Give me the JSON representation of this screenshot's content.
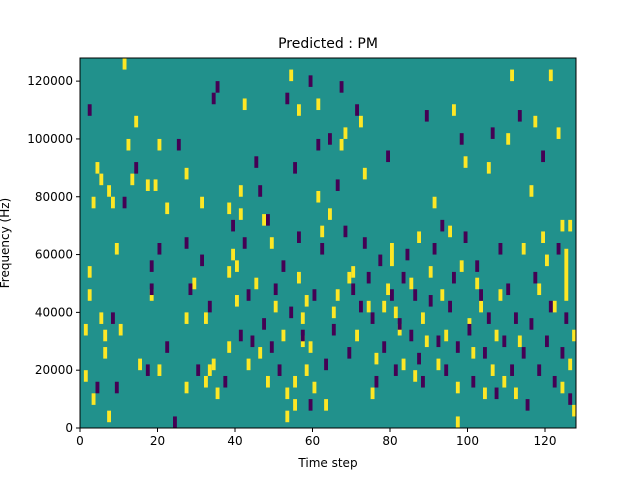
{
  "chart_data": {
    "type": "heatmap",
    "title": "Predicted : PM",
    "xlabel": "Time step",
    "ylabel": "Frequency (Hz)",
    "xlim": [
      0,
      128
    ],
    "ylim": [
      0,
      128000
    ],
    "x_ticks": [
      0,
      20,
      40,
      60,
      80,
      100,
      120
    ],
    "y_ticks": [
      0,
      20000,
      40000,
      60000,
      80000,
      100000,
      120000
    ],
    "x_tick_labels": [
      "0",
      "20",
      "40",
      "60",
      "80",
      "100",
      "120"
    ],
    "y_tick_labels": [
      "0",
      "20000",
      "40000",
      "60000",
      "80000",
      "100000",
      "120000"
    ],
    "grid": false,
    "colormap": "viridis",
    "colors": {
      "background": "#21918c",
      "high": "#fde725",
      "low": "#440154"
    },
    "high_cells": [
      [
        1,
        32000,
        36000
      ],
      [
        1,
        16000,
        20000
      ],
      [
        2,
        52000,
        56000
      ],
      [
        2,
        44000,
        48000
      ],
      [
        3,
        8000,
        12000
      ],
      [
        3,
        76000,
        80000
      ],
      [
        4,
        88000,
        92000
      ],
      [
        5,
        84000,
        88000
      ],
      [
        5,
        36000,
        40000
      ],
      [
        6,
        30000,
        34000
      ],
      [
        6,
        24000,
        28000
      ],
      [
        7,
        2000,
        6000
      ],
      [
        7,
        80000,
        84000
      ],
      [
        8,
        76000,
        80000
      ],
      [
        9,
        60000,
        64000
      ],
      [
        10,
        32000,
        36000
      ],
      [
        11,
        124000,
        128000
      ],
      [
        12,
        96000,
        100000
      ],
      [
        13,
        84000,
        88000
      ],
      [
        14,
        104000,
        108000
      ],
      [
        15,
        20000,
        24000
      ],
      [
        17,
        82000,
        86000
      ],
      [
        18,
        44000,
        48000
      ],
      [
        19,
        82000,
        86000
      ],
      [
        20,
        96000,
        100000
      ],
      [
        20,
        18000,
        22000
      ],
      [
        22,
        74000,
        78000
      ],
      [
        27,
        86000,
        90000
      ],
      [
        27,
        36000,
        40000
      ],
      [
        27,
        12000,
        16000
      ],
      [
        29,
        48000,
        52000
      ],
      [
        31,
        76000,
        80000
      ],
      [
        32,
        14000,
        18000
      ],
      [
        32,
        36000,
        40000
      ],
      [
        33,
        18000,
        22000
      ],
      [
        34,
        20000,
        24000
      ],
      [
        35,
        10000,
        14000
      ],
      [
        38,
        52000,
        56000
      ],
      [
        38,
        74000,
        78000
      ],
      [
        38,
        26000,
        30000
      ],
      [
        39,
        58000,
        62000
      ],
      [
        40,
        54000,
        58000
      ],
      [
        40,
        42000,
        46000
      ],
      [
        41,
        72000,
        76000
      ],
      [
        41,
        80000,
        84000
      ],
      [
        42,
        110000,
        114000
      ],
      [
        43,
        20000,
        24000
      ],
      [
        45,
        48000,
        52000
      ],
      [
        46,
        24000,
        28000
      ],
      [
        47,
        70000,
        74000
      ],
      [
        48,
        14000,
        18000
      ],
      [
        49,
        62000,
        66000
      ],
      [
        50,
        40000,
        44000
      ],
      [
        52,
        30000,
        34000
      ],
      [
        53,
        10000,
        14000
      ],
      [
        53,
        2000,
        6000
      ],
      [
        54,
        120000,
        124000
      ],
      [
        55,
        6000,
        10000
      ],
      [
        55,
        14000,
        18000
      ],
      [
        56,
        108000,
        112000
      ],
      [
        56,
        50000,
        54000
      ],
      [
        57,
        36000,
        40000
      ],
      [
        57,
        28000,
        32000
      ],
      [
        58,
        18000,
        22000
      ],
      [
        58,
        42000,
        46000
      ],
      [
        59,
        26000,
        30000
      ],
      [
        60,
        12000,
        16000
      ],
      [
        61,
        110000,
        114000
      ],
      [
        61,
        78000,
        82000
      ],
      [
        62,
        66000,
        70000
      ],
      [
        63,
        6000,
        10000
      ],
      [
        64,
        72000,
        76000
      ],
      [
        65,
        38000,
        42000
      ],
      [
        66,
        44000,
        48000
      ],
      [
        67,
        96000,
        100000
      ],
      [
        68,
        100000,
        104000
      ],
      [
        69,
        50000,
        54000
      ],
      [
        70,
        52000,
        56000
      ],
      [
        71,
        30000,
        34000
      ],
      [
        72,
        104000,
        108000
      ],
      [
        73,
        86000,
        90000
      ],
      [
        74,
        40000,
        44000
      ],
      [
        75,
        10000,
        14000
      ],
      [
        76,
        22000,
        26000
      ],
      [
        78,
        40000,
        44000
      ],
      [
        79,
        46000,
        50000
      ],
      [
        80,
        56000,
        64000
      ],
      [
        81,
        38000,
        42000
      ],
      [
        82,
        32000,
        36000
      ],
      [
        83,
        20000,
        24000
      ],
      [
        85,
        48000,
        52000
      ],
      [
        86,
        16000,
        20000
      ],
      [
        87,
        64000,
        68000
      ],
      [
        88,
        36000,
        40000
      ],
      [
        89,
        28000,
        32000
      ],
      [
        90,
        52000,
        56000
      ],
      [
        91,
        76000,
        80000
      ],
      [
        92,
        20000,
        24000
      ],
      [
        93,
        44000,
        48000
      ],
      [
        94,
        30000,
        34000
      ],
      [
        95,
        66000,
        70000
      ],
      [
        96,
        108000,
        112000
      ],
      [
        97,
        12000,
        16000
      ],
      [
        97,
        0,
        4000
      ],
      [
        98,
        54000,
        58000
      ],
      [
        99,
        90000,
        94000
      ],
      [
        100,
        34000,
        38000
      ],
      [
        101,
        24000,
        28000
      ],
      [
        102,
        48000,
        52000
      ],
      [
        103,
        40000,
        44000
      ],
      [
        104,
        10000,
        14000
      ],
      [
        105,
        88000,
        92000
      ],
      [
        106,
        18000,
        22000
      ],
      [
        107,
        30000,
        34000
      ],
      [
        108,
        44000,
        48000
      ],
      [
        109,
        14000,
        18000
      ],
      [
        110,
        98000,
        102000
      ],
      [
        111,
        120000,
        124000
      ],
      [
        112,
        10000,
        14000
      ],
      [
        113,
        28000,
        32000
      ],
      [
        114,
        60000,
        64000
      ],
      [
        116,
        80000,
        84000
      ],
      [
        117,
        104000,
        108000
      ],
      [
        118,
        46000,
        50000
      ],
      [
        119,
        64000,
        68000
      ],
      [
        120,
        56000,
        60000
      ],
      [
        121,
        120000,
        124000
      ],
      [
        122,
        40000,
        44000
      ],
      [
        123,
        100000,
        104000
      ],
      [
        124,
        68000,
        72000
      ],
      [
        124,
        12000,
        16000
      ],
      [
        125,
        44000,
        62000
      ],
      [
        126,
        20000,
        24000
      ],
      [
        126,
        68000,
        72000
      ],
      [
        127,
        4000,
        8000
      ],
      [
        127,
        30000,
        34000
      ]
    ],
    "low_cells": [
      [
        2,
        108000,
        112000
      ],
      [
        4,
        12000,
        16000
      ],
      [
        8,
        36000,
        40000
      ],
      [
        9,
        12000,
        16000
      ],
      [
        11,
        76000,
        80000
      ],
      [
        14,
        88000,
        92000
      ],
      [
        17,
        18000,
        22000
      ],
      [
        18,
        46000,
        50000
      ],
      [
        18,
        54000,
        58000
      ],
      [
        20,
        60000,
        64000
      ],
      [
        22,
        26000,
        30000
      ],
      [
        24,
        0,
        4000
      ],
      [
        25,
        96000,
        100000
      ],
      [
        27,
        62000,
        66000
      ],
      [
        28,
        46000,
        50000
      ],
      [
        30,
        18000,
        22000
      ],
      [
        31,
        56000,
        60000
      ],
      [
        33,
        40000,
        44000
      ],
      [
        34,
        112000,
        116000
      ],
      [
        35,
        116000,
        120000
      ],
      [
        37,
        14000,
        18000
      ],
      [
        39,
        68000,
        72000
      ],
      [
        41,
        30000,
        34000
      ],
      [
        42,
        62000,
        66000
      ],
      [
        43,
        44000,
        48000
      ],
      [
        44,
        28000,
        32000
      ],
      [
        45,
        90000,
        94000
      ],
      [
        46,
        80000,
        84000
      ],
      [
        47,
        34000,
        38000
      ],
      [
        48,
        70000,
        74000
      ],
      [
        49,
        26000,
        30000
      ],
      [
        50,
        46000,
        50000
      ],
      [
        51,
        18000,
        22000
      ],
      [
        52,
        54000,
        58000
      ],
      [
        53,
        112000,
        116000
      ],
      [
        54,
        38000,
        42000
      ],
      [
        55,
        88000,
        92000
      ],
      [
        56,
        64000,
        68000
      ],
      [
        57,
        30000,
        34000
      ],
      [
        59,
        118000,
        122000
      ],
      [
        59,
        6000,
        10000
      ],
      [
        60,
        44000,
        48000
      ],
      [
        61,
        96000,
        100000
      ],
      [
        62,
        60000,
        64000
      ],
      [
        63,
        20000,
        24000
      ],
      [
        64,
        98000,
        102000
      ],
      [
        65,
        32000,
        36000
      ],
      [
        66,
        82000,
        86000
      ],
      [
        67,
        116000,
        120000
      ],
      [
        68,
        66000,
        70000
      ],
      [
        69,
        24000,
        28000
      ],
      [
        70,
        46000,
        50000
      ],
      [
        71,
        108000,
        112000
      ],
      [
        72,
        40000,
        44000
      ],
      [
        73,
        62000,
        66000
      ],
      [
        74,
        50000,
        54000
      ],
      [
        75,
        36000,
        40000
      ],
      [
        76,
        14000,
        18000
      ],
      [
        77,
        56000,
        60000
      ],
      [
        78,
        26000,
        30000
      ],
      [
        79,
        92000,
        96000
      ],
      [
        80,
        44000,
        48000
      ],
      [
        81,
        18000,
        22000
      ],
      [
        82,
        34000,
        38000
      ],
      [
        83,
        50000,
        54000
      ],
      [
        84,
        58000,
        62000
      ],
      [
        85,
        30000,
        34000
      ],
      [
        86,
        44000,
        48000
      ],
      [
        87,
        22000,
        26000
      ],
      [
        88,
        14000,
        18000
      ],
      [
        89,
        106000,
        110000
      ],
      [
        90,
        42000,
        46000
      ],
      [
        91,
        60000,
        64000
      ],
      [
        92,
        28000,
        32000
      ],
      [
        93,
        68000,
        72000
      ],
      [
        94,
        18000,
        22000
      ],
      [
        95,
        40000,
        44000
      ],
      [
        96,
        50000,
        54000
      ],
      [
        97,
        26000,
        30000
      ],
      [
        98,
        98000,
        102000
      ],
      [
        99,
        64000,
        68000
      ],
      [
        100,
        32000,
        36000
      ],
      [
        101,
        14000,
        18000
      ],
      [
        102,
        54000,
        58000
      ],
      [
        103,
        44000,
        48000
      ],
      [
        104,
        24000,
        28000
      ],
      [
        105,
        36000,
        40000
      ],
      [
        106,
        100000,
        104000
      ],
      [
        107,
        10000,
        14000
      ],
      [
        108,
        60000,
        64000
      ],
      [
        109,
        28000,
        32000
      ],
      [
        110,
        46000,
        50000
      ],
      [
        111,
        18000,
        22000
      ],
      [
        112,
        36000,
        40000
      ],
      [
        113,
        106000,
        110000
      ],
      [
        114,
        24000,
        28000
      ],
      [
        115,
        6000,
        10000
      ],
      [
        116,
        34000,
        38000
      ],
      [
        117,
        50000,
        54000
      ],
      [
        118,
        18000,
        22000
      ],
      [
        119,
        92000,
        96000
      ],
      [
        120,
        28000,
        32000
      ],
      [
        121,
        40000,
        44000
      ],
      [
        122,
        14000,
        18000
      ],
      [
        123,
        60000,
        64000
      ],
      [
        124,
        24000,
        28000
      ],
      [
        125,
        36000,
        40000
      ],
      [
        126,
        8000,
        12000
      ]
    ]
  }
}
